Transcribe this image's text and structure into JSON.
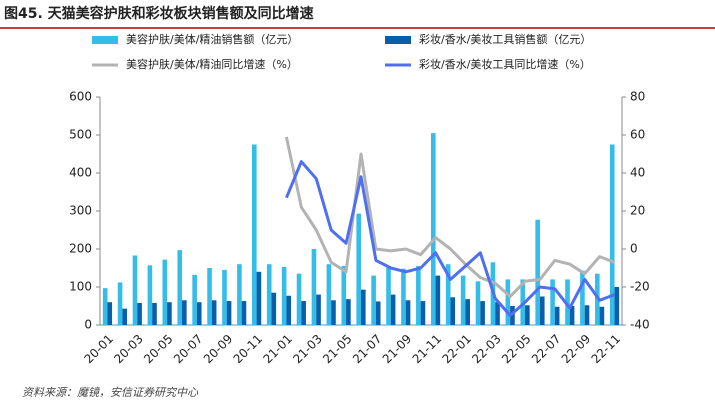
{
  "chart_data": {
    "type": "bar_line",
    "title": "图45. 天猫美容护肤和彩妆板块销售额及同比增速",
    "source": "资料来源：魔镜，安信证券研究中心",
    "categories": [
      "20-01",
      null,
      "20-03",
      null,
      "20-05",
      null,
      "20-07",
      null,
      "20-09",
      null,
      "20-11",
      null,
      "21-01",
      null,
      "21-03",
      null,
      "21-05",
      null,
      "21-07",
      null,
      "21-09",
      null,
      "21-11",
      null,
      "22-01",
      null,
      "22-03",
      null,
      "22-05",
      null,
      "22-07",
      null,
      "22-09",
      null,
      "22-11"
    ],
    "series": [
      {
        "name": "美容护肤/美体/精油销售额（亿元）",
        "kind": "bar",
        "color": "#33bde8",
        "values": [
          97,
          112,
          183,
          157,
          172,
          197,
          132,
          150,
          145,
          160,
          475,
          160,
          153,
          135,
          200,
          160,
          155,
          293,
          130,
          153,
          148,
          155,
          505,
          160,
          130,
          115,
          165,
          120,
          120,
          277,
          120,
          120,
          143,
          135,
          475
        ]
      },
      {
        "name": "彩妆/香水/美妆工具销售额（亿元）",
        "kind": "bar",
        "color": "#0b5ea8",
        "values": [
          60,
          43,
          58,
          58,
          60,
          65,
          60,
          65,
          63,
          63,
          140,
          85,
          77,
          63,
          80,
          65,
          68,
          93,
          62,
          80,
          65,
          63,
          130,
          73,
          68,
          63,
          60,
          50,
          52,
          75,
          48,
          50,
          52,
          48,
          100
        ]
      },
      {
        "name": "美容护肤/美体/精油同比增速（%）",
        "kind": "line",
        "axis": "y2",
        "color": "#b3b3b3",
        "values": [
          null,
          null,
          null,
          null,
          null,
          null,
          null,
          null,
          null,
          null,
          null,
          null,
          59,
          22,
          10,
          -7,
          -12,
          50,
          0,
          -1,
          0,
          -3,
          6,
          0,
          -8,
          -15,
          -18,
          -25,
          -17,
          -16,
          -6,
          -8,
          -13,
          -4,
          -7
        ]
      },
      {
        "name": "彩妆/香水/美妆工具同比增速（%）",
        "kind": "line",
        "axis": "y2",
        "color": "#4f6ff0",
        "values": [
          null,
          null,
          null,
          null,
          null,
          null,
          null,
          null,
          null,
          null,
          null,
          null,
          27,
          46,
          37,
          10,
          3,
          38,
          -6,
          -10,
          -12,
          -10,
          -2,
          -16,
          -9,
          -2,
          -26,
          -35,
          -28,
          -20,
          -21,
          -31,
          -16,
          -27,
          -24
        ]
      }
    ],
    "ylim": [
      0,
      600
    ],
    "yticks": [
      0,
      100,
      200,
      300,
      400,
      500,
      600
    ],
    "y2lim": [
      -40,
      80
    ],
    "y2ticks": [
      -40,
      -20,
      0,
      20,
      40,
      60,
      80
    ]
  }
}
